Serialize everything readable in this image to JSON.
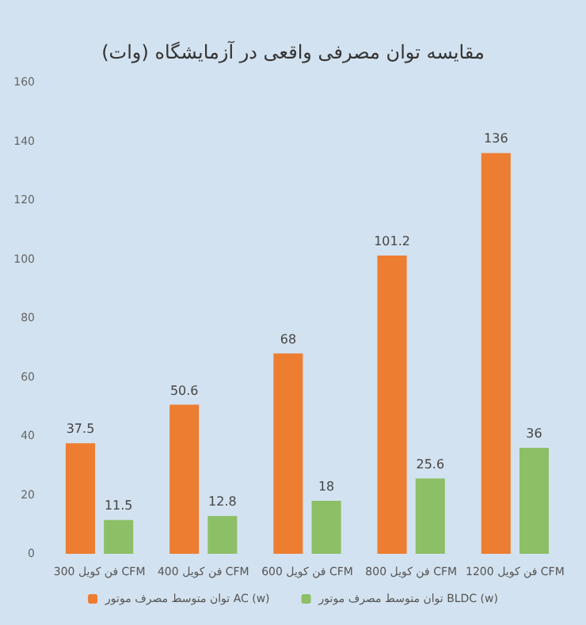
{
  "chart_data": {
    "type": "bar",
    "title": "مقایسه توان مصرفی واقعی در آزمایشگاه (وات)",
    "categories": [
      "فن کویل 300 CFM",
      "فن کویل 400 CFM",
      "فن کویل 600 CFM",
      "فن کویل 800 CFM",
      "فن کویل 1200 CFM"
    ],
    "series": [
      {
        "name": "توان متوسط مصرف موتور AC (w)",
        "color": "#ed7d31",
        "values": [
          37.5,
          50.6,
          68,
          101.2,
          136
        ]
      },
      {
        "name": "توان متوسط مصرف موتور BLDC (w)",
        "color": "#8dbf67",
        "values": [
          11.5,
          12.8,
          18,
          25.6,
          36
        ]
      }
    ],
    "ylim": [
      0,
      160
    ],
    "yticks": [
      0,
      20,
      40,
      60,
      80,
      100,
      120,
      140,
      160
    ],
    "grid": false,
    "legend": "bottom",
    "data_labels": true
  }
}
